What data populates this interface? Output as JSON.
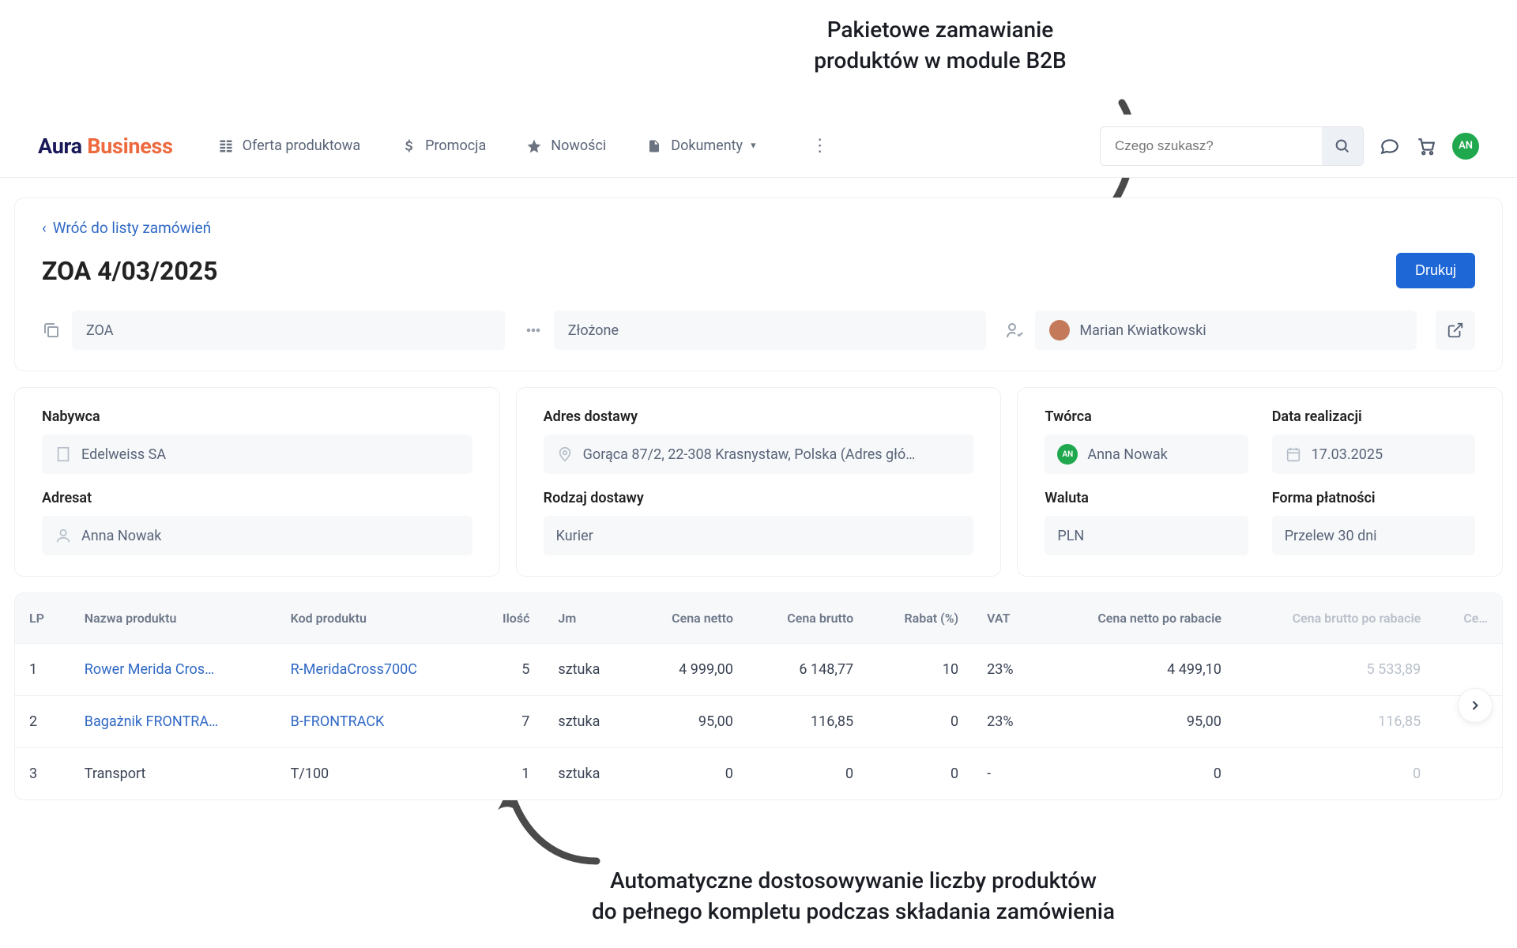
{
  "annotations": {
    "top": "Pakietowe zamawianie\nproduktów w module B2B",
    "bottom": "Automatyczne dostosowywanie liczby produktów\ndo pełnego kompletu podczas składania zamówienia"
  },
  "brand": {
    "part1": "Aura",
    "part2": "Business"
  },
  "nav": {
    "offer": "Oferta produktowa",
    "promo": "Promocja",
    "news": "Nowości",
    "docs": "Dokumenty"
  },
  "search": {
    "placeholder": "Czego szukasz?"
  },
  "avatar": {
    "initials": "AN"
  },
  "order": {
    "back": "Wróć do listy zamówień",
    "title": "ZOA 4/03/2025",
    "print": "Drukuj",
    "type": "ZOA",
    "status": "Złożone",
    "assignee": "Marian Kwiatkowski"
  },
  "details": {
    "buyer_label": "Nabywca",
    "buyer": "Edelweiss SA",
    "recipient_label": "Adresat",
    "recipient": "Anna Nowak",
    "delivery_addr_label": "Adres dostawy",
    "delivery_addr": "Gorąca 87/2, 22-308 Krasnystaw, Polska (Adres głó…",
    "delivery_type_label": "Rodzaj dostawy",
    "delivery_type": "Kurier",
    "creator_label": "Twórca",
    "creator": "Anna Nowak",
    "creator_initials": "AN",
    "currency_label": "Waluta",
    "currency": "PLN",
    "date_label": "Data realizacji",
    "date": "17.03.2025",
    "payment_label": "Forma płatności",
    "payment": "Przelew 30 dni"
  },
  "table": {
    "headers": {
      "lp": "LP",
      "name": "Nazwa produktu",
      "code": "Kod produktu",
      "qty": "Ilość",
      "unit": "Jm",
      "net": "Cena netto",
      "gross": "Cena brutto",
      "rabat": "Rabat (%)",
      "vat": "VAT",
      "net_after": "Cena netto po rabacie",
      "gross_after": "Cena brutto po rabacie",
      "extra": "Ce…"
    },
    "rows": [
      {
        "lp": "1",
        "name": "Rower Merida Cros…",
        "code": "R-MeridaCross700C",
        "qty": "5",
        "unit": "sztuka",
        "net": "4 999,00",
        "gross": "6 148,77",
        "rabat": "10",
        "vat": "23%",
        "net_after": "4 499,10",
        "gross_after": "5 533,89",
        "link": true
      },
      {
        "lp": "2",
        "name": "Bagażnik FRONTRA…",
        "code": "B-FRONTRACK",
        "qty": "7",
        "unit": "sztuka",
        "net": "95,00",
        "gross": "116,85",
        "rabat": "0",
        "vat": "23%",
        "net_after": "95,00",
        "gross_after": "116,85",
        "link": true
      },
      {
        "lp": "3",
        "name": "Transport",
        "code": "T/100",
        "qty": "1",
        "unit": "sztuka",
        "net": "0",
        "gross": "0",
        "rabat": "0",
        "vat": "-",
        "net_after": "0",
        "gross_after": "0",
        "link": false
      }
    ]
  },
  "colors": {
    "primary": "#1e67d6",
    "link": "#2f68c5",
    "accent_green": "#1fa84d",
    "brand_orange": "#ed6a3e",
    "brand_navy": "#19195a",
    "border": "#eef0f3",
    "muted_bg": "#f6f8fa",
    "text": "#3a4354",
    "text_muted": "#6d7889",
    "faded": "#b9c0ca",
    "arrow": "#4a4a4a"
  }
}
